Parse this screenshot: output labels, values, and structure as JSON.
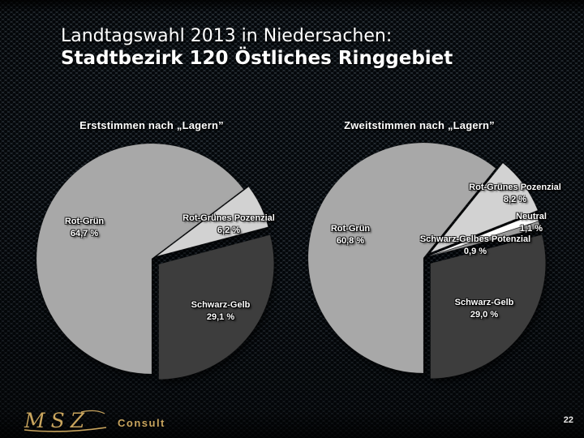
{
  "header": {
    "line1": "Landtagswahl 2013 in Niedersachen:",
    "line2": "Stadtbezirk 120 Östliches Ringgebiet"
  },
  "footer": {
    "logo_msz": "MSZ",
    "logo_consult": "Consult",
    "page_number": "22"
  },
  "colors": {
    "rot_gruen": "#a8a8a8",
    "rot_gruenes_potenzial": "#d2d2d2",
    "neutral": "#ffffff",
    "schwarz_gelbes_potenzial": "#9b9b9b",
    "schwarz_gelb": "#3d3d3d",
    "label_text": "#ffffff",
    "logo_gold": "#c9a55e",
    "background_base": "#242b31"
  },
  "chart_data": [
    {
      "type": "pie",
      "title": "Erststimmen nach „Lagern”",
      "start_angle_deg": 180,
      "direction": "clockwise",
      "slices": [
        {
          "label": "Rot-Grün",
          "value": 64.7,
          "value_label": "64,7 %",
          "color": "#a8a8a8"
        },
        {
          "label": "Rot-Grünes Pozenzial",
          "value": 6.2,
          "value_label": "6,2 %",
          "color": "#d2d2d2"
        },
        {
          "label": "Schwarz-Gelb",
          "value": 29.1,
          "value_label": "29,1 %",
          "color": "#3d3d3d"
        }
      ]
    },
    {
      "type": "pie",
      "title": "Zweitstimmen nach „Lagern”",
      "start_angle_deg": 180,
      "direction": "clockwise",
      "slices": [
        {
          "label": "Rot-Grün",
          "value": 60.8,
          "value_label": "60,8 %",
          "color": "#a8a8a8"
        },
        {
          "label": "Rot-Grünes Pozenzial",
          "value": 8.2,
          "value_label": "8,2 %",
          "color": "#d2d2d2"
        },
        {
          "label": "Neutral",
          "value": 1.1,
          "value_label": "1,1 %",
          "color": "#ffffff"
        },
        {
          "label": "Schwarz-Gelbes Potenzial",
          "value": 0.9,
          "value_label": "0,9 %",
          "color": "#9b9b9b"
        },
        {
          "label": "Schwarz-Gelb",
          "value": 29.0,
          "value_label": "29,0 %",
          "color": "#3d3d3d"
        }
      ]
    }
  ]
}
